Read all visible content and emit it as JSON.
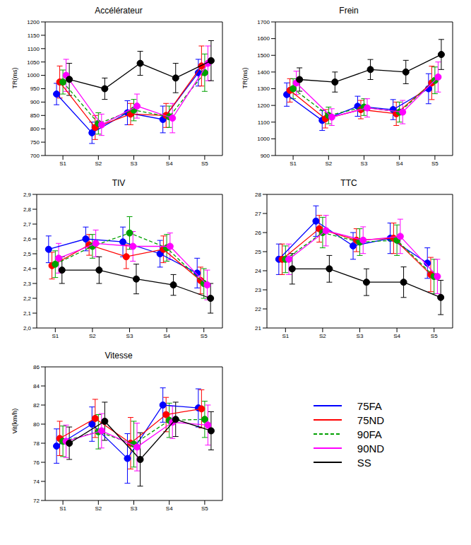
{
  "chart_data": [
    {
      "type": "line",
      "title": "Accélérateur",
      "y_label": "TR(ms)",
      "categories": [
        "S1",
        "S2",
        "S3",
        "S4",
        "S5"
      ],
      "ylim": [
        700,
        1200
      ],
      "yticks": [
        700,
        750,
        800,
        850,
        900,
        950,
        1000,
        1050,
        1100,
        1150,
        1200
      ],
      "grid": false,
      "series": [
        {
          "name": "75FA",
          "color": "#0000ff",
          "line_style": "solid",
          "values": [
            930,
            785,
            860,
            835,
            1010
          ],
          "errors": [
            40,
            40,
            45,
            50,
            50
          ]
        },
        {
          "name": "75ND",
          "color": "#ff0000",
          "line_style": "solid",
          "values": [
            975,
            805,
            855,
            850,
            1035
          ],
          "errors": [
            60,
            45,
            40,
            45,
            75
          ]
        },
        {
          "name": "90FA",
          "color": "#00a000",
          "line_style": "dashed",
          "values": [
            975,
            820,
            870,
            845,
            1010
          ],
          "errors": [
            45,
            40,
            40,
            40,
            70
          ]
        },
        {
          "name": "90ND",
          "color": "#ff00ff",
          "line_style": "solid",
          "values": [
            1000,
            815,
            885,
            840,
            1045
          ],
          "errors": [
            60,
            40,
            45,
            55,
            65
          ]
        },
        {
          "name": "SS",
          "color": "#000000",
          "line_style": "solid",
          "values": [
            985,
            950,
            1045,
            990,
            1055
          ],
          "errors": [
            60,
            40,
            45,
            55,
            75
          ]
        }
      ]
    },
    {
      "type": "line",
      "title": "Frein",
      "y_label": "TR(ms)",
      "categories": [
        "S1",
        "S2",
        "S3",
        "S4",
        "S5"
      ],
      "ylim": [
        900,
        1700
      ],
      "yticks": [
        900,
        1000,
        1100,
        1200,
        1300,
        1400,
        1500,
        1600,
        1700
      ],
      "grid": false,
      "series": [
        {
          "name": "75FA",
          "color": "#0000ff",
          "line_style": "solid",
          "values": [
            1265,
            1110,
            1195,
            1175,
            1300
          ],
          "errors": [
            70,
            60,
            60,
            60,
            90
          ]
        },
        {
          "name": "75ND",
          "color": "#ff0000",
          "line_style": "solid",
          "values": [
            1290,
            1120,
            1175,
            1150,
            1335
          ],
          "errors": [
            70,
            55,
            55,
            70,
            100
          ]
        },
        {
          "name": "90FA",
          "color": "#00a000",
          "line_style": "dashed",
          "values": [
            1300,
            1140,
            1190,
            1160,
            1350
          ],
          "errors": [
            60,
            50,
            50,
            60,
            80
          ]
        },
        {
          "name": "90ND",
          "color": "#ff00ff",
          "line_style": "solid",
          "values": [
            1335,
            1130,
            1185,
            1160,
            1370
          ],
          "errors": [
            70,
            50,
            55,
            70,
            90
          ]
        },
        {
          "name": "SS",
          "color": "#000000",
          "line_style": "solid",
          "values": [
            1355,
            1340,
            1415,
            1400,
            1505
          ],
          "errors": [
            70,
            60,
            60,
            70,
            90
          ]
        }
      ]
    },
    {
      "type": "line",
      "title": "TIV",
      "categories": [
        "S1",
        "S2",
        "S3",
        "S4",
        "S5"
      ],
      "ylim": [
        2.0,
        2.9
      ],
      "yticks": [
        {
          "value": 2.0,
          "label": "2,0"
        },
        {
          "value": 2.1,
          "label": "2,1"
        },
        {
          "value": 2.2,
          "label": "2,2"
        },
        {
          "value": 2.3,
          "label": "2,3"
        },
        {
          "value": 2.4,
          "label": "2,4"
        },
        {
          "value": 2.5,
          "label": "2,5"
        },
        {
          "value": 2.6,
          "label": "2,6"
        },
        {
          "value": 2.7,
          "label": "2,7"
        },
        {
          "value": 2.8,
          "label": "2,8"
        },
        {
          "value": 2.9,
          "label": "2,9"
        }
      ],
      "grid": false,
      "series": [
        {
          "name": "75FA",
          "color": "#0000ff",
          "line_style": "solid",
          "values": [
            2.53,
            2.6,
            2.58,
            2.5,
            2.37
          ],
          "errors": [
            0.09,
            0.08,
            0.1,
            0.09,
            0.1
          ]
        },
        {
          "name": "75ND",
          "color": "#ff0000",
          "line_style": "solid",
          "values": [
            2.42,
            2.56,
            2.48,
            2.53,
            2.32
          ],
          "errors": [
            0.09,
            0.07,
            0.08,
            0.09,
            0.09
          ]
        },
        {
          "name": "90FA",
          "color": "#00a000",
          "line_style": "dashed",
          "values": [
            2.43,
            2.55,
            2.64,
            2.54,
            2.3
          ],
          "errors": [
            0.09,
            0.08,
            0.11,
            0.09,
            0.1
          ]
        },
        {
          "name": "90ND",
          "color": "#ff00ff",
          "line_style": "solid",
          "values": [
            2.47,
            2.57,
            2.55,
            2.55,
            2.29
          ],
          "errors": [
            0.1,
            0.09,
            0.1,
            0.09,
            0.1
          ]
        },
        {
          "name": "SS",
          "color": "#000000",
          "line_style": "solid",
          "values": [
            2.39,
            2.39,
            2.33,
            2.29,
            2.2
          ],
          "errors": [
            0.09,
            0.09,
            0.1,
            0.07,
            0.1
          ]
        }
      ]
    },
    {
      "type": "line",
      "title": "TTC",
      "categories": [
        "S1",
        "S2",
        "S3",
        "S4",
        "S5"
      ],
      "ylim": [
        21,
        28
      ],
      "yticks": [
        21,
        22,
        23,
        24,
        25,
        26,
        27,
        28
      ],
      "grid": false,
      "series": [
        {
          "name": "75FA",
          "color": "#0000ff",
          "line_style": "solid",
          "values": [
            24.6,
            26.6,
            25.3,
            25.7,
            24.4
          ],
          "errors": [
            0.8,
            0.8,
            0.7,
            0.8,
            0.8
          ]
        },
        {
          "name": "75ND",
          "color": "#ff0000",
          "line_style": "solid",
          "values": [
            24.6,
            26.2,
            25.6,
            25.7,
            23.8
          ],
          "errors": [
            0.8,
            0.7,
            0.6,
            0.8,
            0.9
          ]
        },
        {
          "name": "90FA",
          "color": "#00a000",
          "line_style": "dashed",
          "values": [
            24.6,
            26.0,
            25.5,
            25.6,
            23.7
          ],
          "errors": [
            0.7,
            0.8,
            0.7,
            0.8,
            0.9
          ]
        },
        {
          "name": "90ND",
          "color": "#ff00ff",
          "line_style": "solid",
          "values": [
            24.6,
            26.1,
            25.6,
            25.8,
            23.7
          ],
          "errors": [
            0.8,
            0.8,
            0.7,
            0.9,
            0.9
          ]
        },
        {
          "name": "SS",
          "color": "#000000",
          "line_style": "solid",
          "values": [
            24.1,
            24.1,
            23.4,
            23.4,
            22.6
          ],
          "errors": [
            0.8,
            0.7,
            0.7,
            0.8,
            0.9
          ]
        }
      ]
    },
    {
      "type": "line",
      "title": "Vitesse",
      "y_label": "Vit(km/h)",
      "categories": [
        "S1",
        "S2",
        "S3",
        "S4",
        "S5"
      ],
      "ylim": [
        72,
        86
      ],
      "yticks": [
        72,
        74,
        76,
        78,
        80,
        82,
        84,
        86
      ],
      "grid": false,
      "series": [
        {
          "name": "75FA",
          "color": "#0000ff",
          "line_style": "solid",
          "values": [
            77.7,
            80.0,
            76.4,
            82.0,
            81.7
          ],
          "errors": [
            1.8,
            1.8,
            2.6,
            1.8,
            2.0
          ]
        },
        {
          "name": "75ND",
          "color": "#ff0000",
          "line_style": "solid",
          "values": [
            78.5,
            80.6,
            78.0,
            81.0,
            81.6
          ],
          "errors": [
            1.8,
            2.0,
            2.7,
            1.8,
            2.0
          ]
        },
        {
          "name": "90FA",
          "color": "#00a000",
          "line_style": "dashed",
          "values": [
            78.2,
            79.2,
            77.9,
            80.4,
            80.5
          ],
          "errors": [
            1.6,
            1.8,
            2.4,
            1.8,
            1.9
          ]
        },
        {
          "name": "90ND",
          "color": "#ff00ff",
          "line_style": "solid",
          "values": [
            78.2,
            79.3,
            77.6,
            80.2,
            79.9
          ],
          "errors": [
            1.7,
            1.8,
            2.5,
            1.7,
            2.1
          ]
        },
        {
          "name": "SS",
          "color": "#000000",
          "line_style": "solid",
          "values": [
            78.0,
            80.3,
            76.3,
            80.5,
            79.3
          ],
          "errors": [
            1.7,
            2.0,
            2.8,
            1.8,
            2.0
          ]
        }
      ]
    }
  ]
}
